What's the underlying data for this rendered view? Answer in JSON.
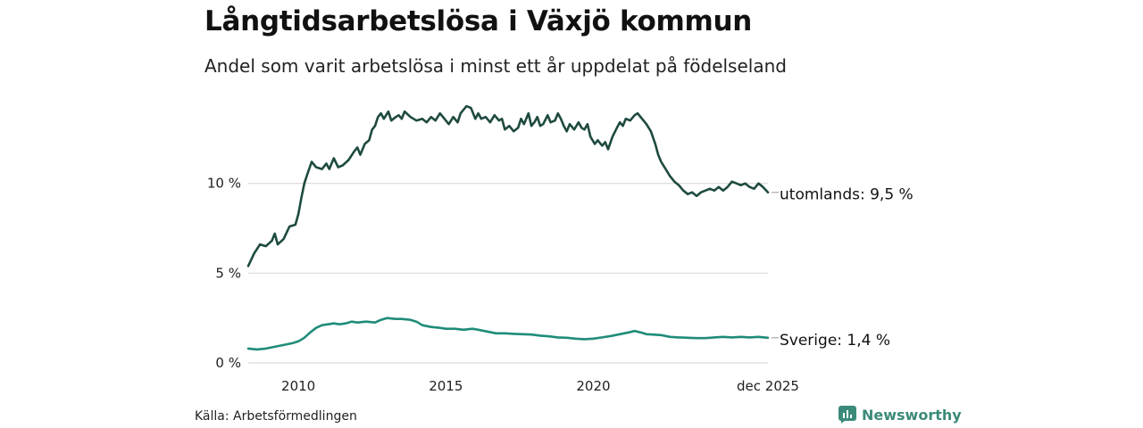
{
  "title": "Långtidsarbetslösa i Växjö kommun",
  "subtitle": "Andel som varit arbetslösa i minst ett år uppdelat på födelseland",
  "source": "Källa: Arbetsförmedlingen",
  "brand": {
    "name": "Newsworthy",
    "icon": "newsworthy-logo-icon"
  },
  "colors": {
    "utomlands": "#1e4a40",
    "sverige": "#1f8c78",
    "grid": "#d9d9d9"
  },
  "chart_data": {
    "type": "line",
    "title": "Långtidsarbetslösa i Växjö kommun",
    "subtitle": "Andel som varit arbetslösa i minst ett år uppdelat på födelseland",
    "xlabel": "",
    "ylabel": "",
    "xlim": [
      2008.3,
      2025.92
    ],
    "ylim": [
      0,
      15
    ],
    "grid": true,
    "x_ticks": [
      {
        "value": 2010,
        "label": "2010"
      },
      {
        "value": 2015,
        "label": "2015"
      },
      {
        "value": 2020,
        "label": "2020"
      },
      {
        "value": 2025.92,
        "label": "dec 2025"
      }
    ],
    "y_ticks": [
      {
        "value": 0,
        "label": "0 %"
      },
      {
        "value": 5,
        "label": "5 %"
      },
      {
        "value": 10,
        "label": "10 %"
      }
    ],
    "series": [
      {
        "name": "utomlands",
        "end_label": "utomlands: 9,5 %",
        "color": "#1e4a40",
        "points": [
          [
            2008.3,
            5.4
          ],
          [
            2008.5,
            6.1
          ],
          [
            2008.7,
            6.6
          ],
          [
            2008.9,
            6.5
          ],
          [
            2009.1,
            6.8
          ],
          [
            2009.2,
            7.2
          ],
          [
            2009.3,
            6.6
          ],
          [
            2009.5,
            6.9
          ],
          [
            2009.7,
            7.6
          ],
          [
            2009.9,
            7.7
          ],
          [
            2010.0,
            8.3
          ],
          [
            2010.1,
            9.2
          ],
          [
            2010.2,
            10.0
          ],
          [
            2010.3,
            10.5
          ],
          [
            2010.45,
            11.2
          ],
          [
            2010.6,
            10.9
          ],
          [
            2010.8,
            10.8
          ],
          [
            2010.95,
            11.1
          ],
          [
            2011.05,
            10.8
          ],
          [
            2011.2,
            11.4
          ],
          [
            2011.35,
            10.9
          ],
          [
            2011.5,
            11.0
          ],
          [
            2011.7,
            11.3
          ],
          [
            2011.9,
            11.8
          ],
          [
            2012.0,
            12.0
          ],
          [
            2012.1,
            11.6
          ],
          [
            2012.25,
            12.2
          ],
          [
            2012.4,
            12.4
          ],
          [
            2012.5,
            13.0
          ],
          [
            2012.6,
            13.2
          ],
          [
            2012.7,
            13.7
          ],
          [
            2012.8,
            13.9
          ],
          [
            2012.9,
            13.6
          ],
          [
            2013.05,
            14.0
          ],
          [
            2013.15,
            13.5
          ],
          [
            2013.3,
            13.7
          ],
          [
            2013.4,
            13.8
          ],
          [
            2013.5,
            13.6
          ],
          [
            2013.6,
            14.0
          ],
          [
            2013.8,
            13.7
          ],
          [
            2014.0,
            13.5
          ],
          [
            2014.2,
            13.6
          ],
          [
            2014.35,
            13.4
          ],
          [
            2014.5,
            13.7
          ],
          [
            2014.65,
            13.5
          ],
          [
            2014.8,
            13.9
          ],
          [
            2015.0,
            13.5
          ],
          [
            2015.1,
            13.3
          ],
          [
            2015.25,
            13.7
          ],
          [
            2015.4,
            13.4
          ],
          [
            2015.5,
            13.9
          ],
          [
            2015.7,
            14.3
          ],
          [
            2015.85,
            14.2
          ],
          [
            2016.0,
            13.6
          ],
          [
            2016.1,
            13.9
          ],
          [
            2016.2,
            13.6
          ],
          [
            2016.35,
            13.7
          ],
          [
            2016.5,
            13.4
          ],
          [
            2016.65,
            13.8
          ],
          [
            2016.8,
            13.5
          ],
          [
            2016.9,
            13.6
          ],
          [
            2017.0,
            13.0
          ],
          [
            2017.15,
            13.2
          ],
          [
            2017.3,
            12.9
          ],
          [
            2017.45,
            13.1
          ],
          [
            2017.55,
            13.6
          ],
          [
            2017.65,
            13.3
          ],
          [
            2017.8,
            13.9
          ],
          [
            2017.9,
            13.2
          ],
          [
            2018.0,
            13.4
          ],
          [
            2018.1,
            13.7
          ],
          [
            2018.2,
            13.2
          ],
          [
            2018.3,
            13.3
          ],
          [
            2018.45,
            13.8
          ],
          [
            2018.55,
            13.4
          ],
          [
            2018.7,
            13.5
          ],
          [
            2018.8,
            13.9
          ],
          [
            2018.9,
            13.6
          ],
          [
            2019.0,
            13.2
          ],
          [
            2019.1,
            12.9
          ],
          [
            2019.2,
            13.3
          ],
          [
            2019.35,
            13.0
          ],
          [
            2019.5,
            13.4
          ],
          [
            2019.6,
            13.1
          ],
          [
            2019.7,
            13.0
          ],
          [
            2019.8,
            13.3
          ],
          [
            2019.9,
            12.6
          ],
          [
            2020.05,
            12.2
          ],
          [
            2020.15,
            12.4
          ],
          [
            2020.3,
            12.1
          ],
          [
            2020.4,
            12.3
          ],
          [
            2020.5,
            11.9
          ],
          [
            2020.65,
            12.6
          ],
          [
            2020.8,
            13.1
          ],
          [
            2020.9,
            13.4
          ],
          [
            2021.0,
            13.2
          ],
          [
            2021.1,
            13.6
          ],
          [
            2021.25,
            13.5
          ],
          [
            2021.4,
            13.8
          ],
          [
            2021.5,
            13.9
          ],
          [
            2021.65,
            13.6
          ],
          [
            2021.8,
            13.3
          ],
          [
            2021.95,
            12.9
          ],
          [
            2022.1,
            12.2
          ],
          [
            2022.2,
            11.6
          ],
          [
            2022.3,
            11.2
          ],
          [
            2022.45,
            10.8
          ],
          [
            2022.6,
            10.4
          ],
          [
            2022.75,
            10.1
          ],
          [
            2022.9,
            9.9
          ],
          [
            2023.05,
            9.6
          ],
          [
            2023.2,
            9.4
          ],
          [
            2023.35,
            9.5
          ],
          [
            2023.5,
            9.3
          ],
          [
            2023.65,
            9.5
          ],
          [
            2023.8,
            9.6
          ],
          [
            2023.95,
            9.7
          ],
          [
            2024.1,
            9.6
          ],
          [
            2024.25,
            9.8
          ],
          [
            2024.4,
            9.6
          ],
          [
            2024.55,
            9.8
          ],
          [
            2024.7,
            10.1
          ],
          [
            2024.85,
            10.0
          ],
          [
            2025.0,
            9.9
          ],
          [
            2025.15,
            10.0
          ],
          [
            2025.3,
            9.8
          ],
          [
            2025.45,
            9.7
          ],
          [
            2025.6,
            10.0
          ],
          [
            2025.75,
            9.8
          ],
          [
            2025.92,
            9.5
          ]
        ]
      },
      {
        "name": "Sverige",
        "end_label": "Sverige: 1,4 %",
        "color": "#1f8c78",
        "points": [
          [
            2008.3,
            0.8
          ],
          [
            2008.6,
            0.75
          ],
          [
            2008.9,
            0.8
          ],
          [
            2009.2,
            0.9
          ],
          [
            2009.5,
            1.0
          ],
          [
            2009.8,
            1.1
          ],
          [
            2010.0,
            1.2
          ],
          [
            2010.2,
            1.4
          ],
          [
            2010.4,
            1.7
          ],
          [
            2010.6,
            1.95
          ],
          [
            2010.8,
            2.1
          ],
          [
            2011.0,
            2.15
          ],
          [
            2011.2,
            2.2
          ],
          [
            2011.4,
            2.15
          ],
          [
            2011.6,
            2.2
          ],
          [
            2011.8,
            2.3
          ],
          [
            2012.0,
            2.25
          ],
          [
            2012.3,
            2.3
          ],
          [
            2012.6,
            2.25
          ],
          [
            2012.8,
            2.4
          ],
          [
            2013.0,
            2.5
          ],
          [
            2013.3,
            2.45
          ],
          [
            2013.5,
            2.45
          ],
          [
            2013.8,
            2.4
          ],
          [
            2014.0,
            2.3
          ],
          [
            2014.2,
            2.1
          ],
          [
            2014.5,
            2.0
          ],
          [
            2014.8,
            1.95
          ],
          [
            2015.0,
            1.9
          ],
          [
            2015.3,
            1.9
          ],
          [
            2015.6,
            1.85
          ],
          [
            2015.9,
            1.9
          ],
          [
            2016.1,
            1.85
          ],
          [
            2016.4,
            1.75
          ],
          [
            2016.7,
            1.65
          ],
          [
            2017.0,
            1.65
          ],
          [
            2017.3,
            1.62
          ],
          [
            2017.6,
            1.6
          ],
          [
            2017.9,
            1.58
          ],
          [
            2018.2,
            1.52
          ],
          [
            2018.5,
            1.48
          ],
          [
            2018.8,
            1.42
          ],
          [
            2019.1,
            1.4
          ],
          [
            2019.4,
            1.35
          ],
          [
            2019.7,
            1.32
          ],
          [
            2020.0,
            1.35
          ],
          [
            2020.3,
            1.42
          ],
          [
            2020.6,
            1.5
          ],
          [
            2020.9,
            1.6
          ],
          [
            2021.2,
            1.7
          ],
          [
            2021.4,
            1.78
          ],
          [
            2021.6,
            1.7
          ],
          [
            2021.8,
            1.6
          ],
          [
            2022.0,
            1.58
          ],
          [
            2022.3,
            1.55
          ],
          [
            2022.6,
            1.45
          ],
          [
            2022.9,
            1.42
          ],
          [
            2023.2,
            1.4
          ],
          [
            2023.5,
            1.38
          ],
          [
            2023.8,
            1.38
          ],
          [
            2024.1,
            1.42
          ],
          [
            2024.4,
            1.45
          ],
          [
            2024.7,
            1.42
          ],
          [
            2025.0,
            1.45
          ],
          [
            2025.3,
            1.42
          ],
          [
            2025.6,
            1.45
          ],
          [
            2025.92,
            1.4
          ]
        ]
      }
    ]
  }
}
